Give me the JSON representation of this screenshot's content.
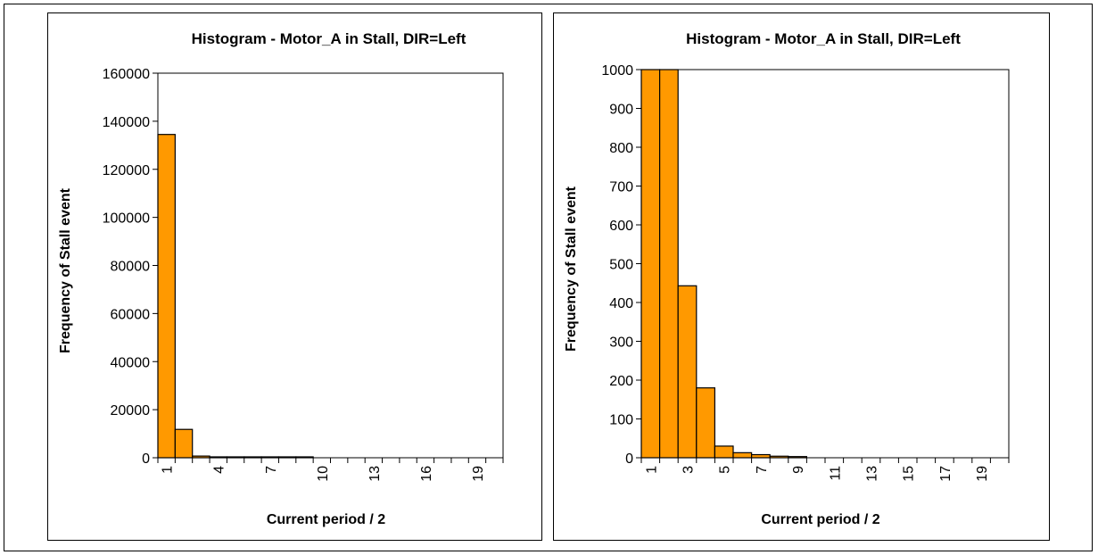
{
  "chart_data": [
    {
      "type": "bar",
      "title": "Histogram - Motor_A in Stall, DIR=Left",
      "xlabel": "Current period / 2",
      "ylabel": "Frequency of Stall event",
      "categories": [
        1,
        2,
        3,
        4,
        5,
        6,
        7,
        8,
        9,
        10,
        11,
        12,
        13,
        14,
        15,
        16,
        17,
        18,
        19,
        20
      ],
      "x_tick_labels": [
        "1",
        "4",
        "7",
        "10",
        "13",
        "16",
        "19"
      ],
      "x_tick_categories": [
        1,
        4,
        7,
        10,
        13,
        16,
        19
      ],
      "values": [
        134500,
        11800,
        700,
        200,
        40,
        15,
        10,
        5,
        3,
        0,
        0,
        0,
        0,
        0,
        0,
        0,
        0,
        0,
        0,
        0
      ],
      "ylim": [
        0,
        160000
      ],
      "y_ticks": [
        0,
        20000,
        40000,
        60000,
        80000,
        100000,
        120000,
        140000,
        160000
      ],
      "bar_color": "#FF9900",
      "grid": false
    },
    {
      "type": "bar",
      "title": "Histogram - Motor_A in Stall, DIR=Left",
      "xlabel": "Current period / 2",
      "ylabel": "Frequency of Stall event",
      "categories": [
        1,
        2,
        3,
        4,
        5,
        6,
        7,
        8,
        9,
        10,
        11,
        12,
        13,
        14,
        15,
        16,
        17,
        18,
        19,
        20
      ],
      "x_tick_labels": [
        "1",
        "3",
        "5",
        "7",
        "9",
        "11",
        "13",
        "15",
        "17",
        "19"
      ],
      "x_tick_categories": [
        1,
        3,
        5,
        7,
        9,
        11,
        13,
        15,
        17,
        19
      ],
      "values": [
        1000,
        1000,
        443,
        180,
        30,
        13,
        8,
        4,
        3,
        0,
        0,
        0,
        0,
        0,
        0,
        0,
        0,
        0,
        0,
        0
      ],
      "ylim": [
        0,
        1000
      ],
      "y_ticks": [
        0,
        100,
        200,
        300,
        400,
        500,
        600,
        700,
        800,
        900,
        1000
      ],
      "bar_color": "#FF9900",
      "grid": false
    }
  ]
}
